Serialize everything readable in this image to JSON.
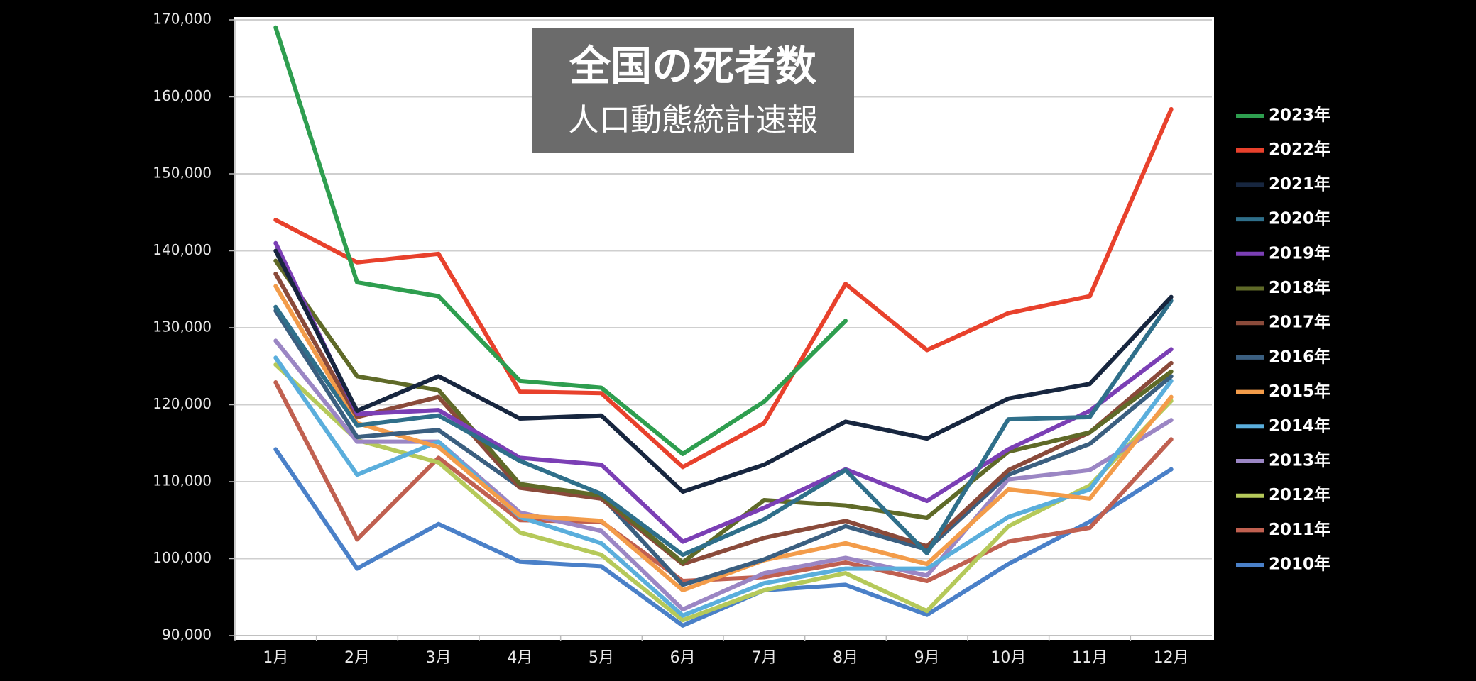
{
  "chart_data": {
    "type": "line",
    "title": "全国の死者数",
    "subtitle": "人口動態統計速報",
    "categories": [
      "1月",
      "2月",
      "3月",
      "4月",
      "5月",
      "6月",
      "7月",
      "8月",
      "9月",
      "10月",
      "11月",
      "12月"
    ],
    "ylim": [
      90000,
      170000
    ],
    "yticks": [
      {
        "value": 90000,
        "label": "90,000"
      },
      {
        "value": 100000,
        "label": "100,000"
      },
      {
        "value": 110000,
        "label": "110,000"
      },
      {
        "value": 120000,
        "label": "120,000"
      },
      {
        "value": 130000,
        "label": "130,000"
      },
      {
        "value": 140000,
        "label": "140,000"
      },
      {
        "value": 150000,
        "label": "150,000"
      },
      {
        "value": 160000,
        "label": "160,000"
      },
      {
        "value": 170000,
        "label": "170,000"
      }
    ],
    "grid": true,
    "series": [
      {
        "name": "2023年",
        "color": "#2e9e4f",
        "values": [
          169000,
          135900,
          134100,
          123100,
          122200,
          113600,
          120400,
          130900,
          null,
          null,
          null,
          null
        ]
      },
      {
        "name": "2022年",
        "color": "#e8412c",
        "values": [
          144000,
          138500,
          139600,
          121700,
          121500,
          111900,
          117600,
          135700,
          127100,
          131900,
          134100,
          158400
        ]
      },
      {
        "name": "2021年",
        "color": "#17263f",
        "values": [
          140000,
          119200,
          123700,
          118200,
          118600,
          108700,
          112200,
          117800,
          115600,
          120800,
          122700,
          134000
        ]
      },
      {
        "name": "2020年",
        "color": "#2f6f8a",
        "values": [
          132700,
          117300,
          118600,
          112700,
          108400,
          100500,
          105100,
          111500,
          100700,
          118100,
          118400,
          133500
        ]
      },
      {
        "name": "2019年",
        "color": "#7b3fb5",
        "values": [
          141000,
          118800,
          119300,
          113100,
          112200,
          102200,
          106600,
          111600,
          107500,
          114200,
          119200,
          127200
        ]
      },
      {
        "name": "2018年",
        "color": "#5f6a28",
        "values": [
          138700,
          123700,
          121900,
          109700,
          108200,
          99500,
          107600,
          106900,
          105300,
          113900,
          116400,
          124300
        ]
      },
      {
        "name": "2017年",
        "color": "#8a4a3a",
        "values": [
          137000,
          118400,
          121000,
          109200,
          107800,
          99300,
          102700,
          104900,
          101600,
          111500,
          116400,
          125400
        ]
      },
      {
        "name": "2016年",
        "color": "#3b5f80",
        "values": [
          132200,
          115800,
          116700,
          109300,
          108100,
          96600,
          99900,
          104200,
          101200,
          110900,
          114900,
          123700
        ]
      },
      {
        "name": "2015年",
        "color": "#f39c4a",
        "values": [
          135400,
          117600,
          114500,
          105600,
          104900,
          95900,
          99800,
          102000,
          99300,
          109000,
          107800,
          121000
        ]
      },
      {
        "name": "2014年",
        "color": "#5aaedc",
        "values": [
          126100,
          110900,
          115200,
          105400,
          102000,
          92600,
          96800,
          98700,
          98700,
          105400,
          109000,
          123100
        ]
      },
      {
        "name": "2013年",
        "color": "#9b86c4",
        "values": [
          128300,
          115200,
          115200,
          106000,
          103600,
          93400,
          98100,
          100100,
          97800,
          110300,
          111500,
          118000
        ]
      },
      {
        "name": "2012年",
        "color": "#b5c95a",
        "values": [
          125200,
          115400,
          112500,
          103400,
          100500,
          92000,
          95900,
          98100,
          93200,
          104200,
          109500,
          120500
        ]
      },
      {
        "name": "2011年",
        "color": "#c06050",
        "values": [
          122900,
          102500,
          113100,
          105000,
          104800,
          97100,
          97600,
          99500,
          97100,
          102200,
          104000,
          115500
        ]
      },
      {
        "name": "2010年",
        "color": "#4a80c8",
        "values": [
          114200,
          98700,
          104500,
          99600,
          99000,
          91300,
          95900,
          96600,
          92700,
          99300,
          104800,
          111600
        ]
      }
    ]
  }
}
